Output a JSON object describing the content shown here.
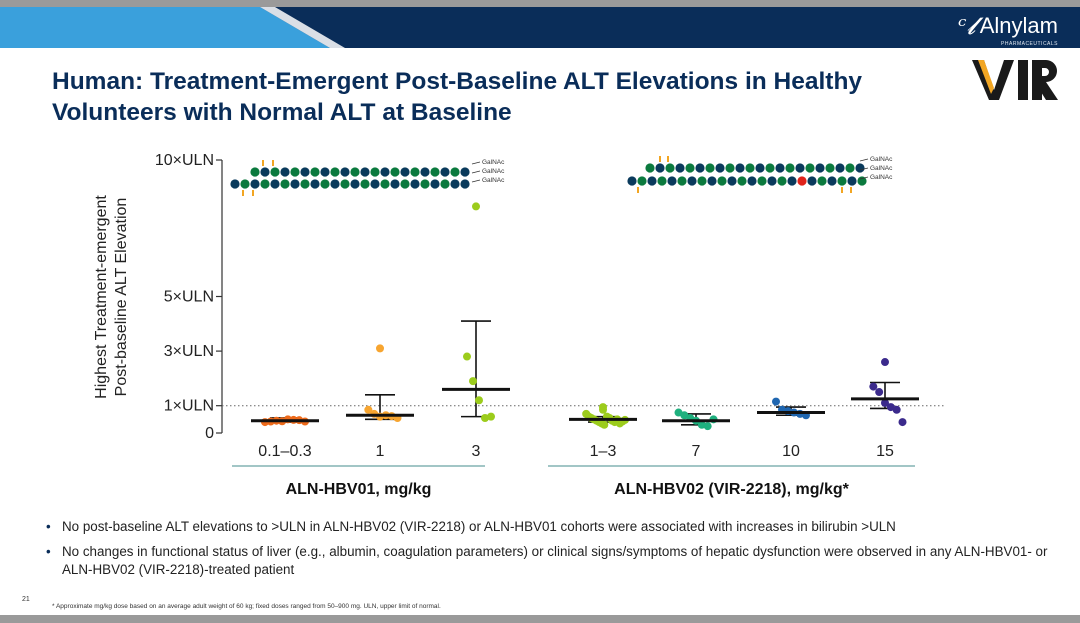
{
  "header": {
    "brand": "Alnylam",
    "brand_sub": "PHARMACEUTICALS",
    "partner_logo": "VIR",
    "colors": {
      "navy": "#0a2d59",
      "light_blue": "#3aa0dc",
      "grey": "#9a9a9a"
    }
  },
  "title": "Human: Treatment-Emergent Post-Baseline ALT Elevations in Healthy Volunteers with Normal ALT at Baseline",
  "chart_data": {
    "type": "scatter",
    "ylabel_line1": "Highest Treatment-emergent",
    "ylabel_line2": "Post-baseline ALT Elevation",
    "y_ticks": [
      {
        "value": 0,
        "label": "0"
      },
      {
        "value": 1,
        "label": "1×ULN"
      },
      {
        "value": 3,
        "label": "3×ULN"
      },
      {
        "value": 5,
        "label": "5×ULN"
      },
      {
        "value": 10,
        "label": "10×ULN"
      }
    ],
    "ylim": [
      0,
      10
    ],
    "reference_line": 1,
    "galnac_labels": [
      "GalNAc",
      "GalNAc",
      "GalNAc"
    ],
    "groups": [
      {
        "label": "ALN-HBV01, mg/kg",
        "categories": [
          {
            "label": "0.1–0.3",
            "color": "#ee6a1a",
            "median": 0.45,
            "low": 0.4,
            "high": 0.55,
            "points": [
              0.4,
              0.42,
              0.45,
              0.43,
              0.5,
              0.48,
              0.47,
              0.42
            ]
          },
          {
            "label": "1",
            "color": "#f7a530",
            "median": 0.65,
            "low": 0.5,
            "high": 1.4,
            "points": [
              3.1,
              0.85,
              0.7,
              0.6,
              0.65,
              0.62,
              0.55
            ]
          },
          {
            "label": "3",
            "color": "#9ccc1c",
            "median": 1.6,
            "low": 0.6,
            "high": 4.1,
            "points": [
              8.3,
              2.8,
              1.9,
              1.2,
              0.55,
              0.6
            ]
          }
        ]
      },
      {
        "label": "ALN-HBV02 (VIR-2218), mg/kg*",
        "categories": [
          {
            "label": "1–3",
            "color": "#9ccc1c",
            "median": 0.5,
            "low": 0.4,
            "high": 0.6,
            "points": [
              0.95,
              0.85,
              0.7,
              0.6,
              0.55,
              0.5,
              0.45,
              0.4,
              0.35,
              0.3,
              0.6,
              0.55,
              0.45,
              0.4,
              0.5,
              0.35,
              0.42,
              0.48
            ]
          },
          {
            "label": "7",
            "color": "#1fb07e",
            "median": 0.45,
            "low": 0.3,
            "high": 0.7,
            "points": [
              0.75,
              0.65,
              0.55,
              0.45,
              0.3,
              0.25,
              0.5
            ]
          },
          {
            "label": "10",
            "color": "#1f66b0",
            "median": 0.75,
            "low": 0.65,
            "high": 0.95,
            "points": [
              1.15,
              0.85,
              0.8,
              0.75,
              0.7,
              0.65
            ]
          },
          {
            "label": "15",
            "color": "#3b2a8c",
            "median": 1.25,
            "low": 0.9,
            "high": 1.85,
            "points": [
              2.6,
              1.7,
              1.5,
              1.1,
              0.95,
              0.85,
              0.4
            ]
          }
        ]
      }
    ]
  },
  "bullets": [
    "No post-baseline ALT elevations to >ULN in ALN-HBV02 (VIR-2218) or ALN-HBV01 cohorts were associated with increases in bilirubin >ULN",
    "No changes in functional status of liver (e.g., albumin, coagulation parameters) or clinical signs/symptoms of hepatic dysfunction were observed in any ALN-HBV01- or ALN-HBV02 (VIR-2218)-treated patient"
  ],
  "page_number": "21",
  "footnote": "* Approximate mg/kg dose based on an average adult weight of 60 kg; fixed doses ranged from 50–900 mg. ULN, upper limit of normal."
}
